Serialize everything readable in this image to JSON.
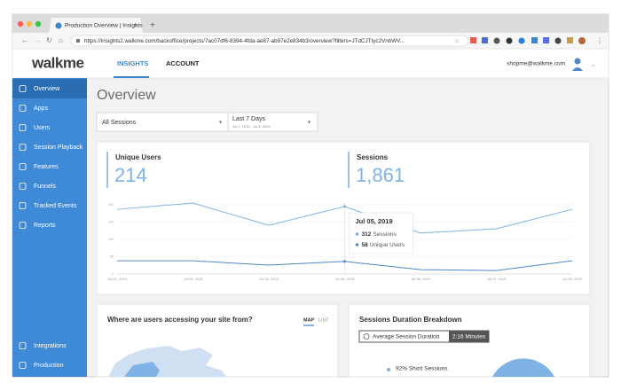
{
  "browser": {
    "tab_title": "Production Overview | Insights",
    "url": "https://insights2.walkme.com/backoffice/projects/7ac07df6-8394-4fda-ae87-ab97e2e834b3/overview?filters=JTdCJTIyc2VnbWV..."
  },
  "header": {
    "logo": "walkme",
    "nav": [
      "INSIGHTS",
      "ACCOUNT"
    ],
    "user": "shopme@walkme.com"
  },
  "sidebar": {
    "items": [
      "Overview",
      "Apps",
      "Users",
      "Session Playback",
      "Features",
      "Funnels",
      "Tracked Events",
      "Reports"
    ],
    "bottom": [
      "Integrations",
      "Production"
    ]
  },
  "page": {
    "title": "Overview",
    "segment": "All Sessions",
    "range": "Last 7 Days",
    "range_dates": "Jul 2, 2019 - Jul 8, 2019"
  },
  "kpis": [
    {
      "label": "Unique Users",
      "value": "214"
    },
    {
      "label": "Sessions",
      "value": "1,861"
    }
  ],
  "chart_data": {
    "type": "line",
    "categories": [
      "Jul 02, 2019",
      "Jul 03, 2019",
      "Jul 04, 2019",
      "Jul 05, 2019",
      "Jul 06, 2019",
      "Jul 07, 2019",
      "Jul 08, 2019"
    ],
    "series": [
      {
        "name": "Sessions",
        "color": "#7fb2e5",
        "values": [
          299,
          328,
          225,
          312,
          189,
          209,
          299
        ]
      },
      {
        "name": "Unique Users",
        "color": "#4d87c7",
        "values": [
          61,
          61,
          41,
          58,
          20,
          16,
          61
        ]
      }
    ],
    "ylim": [
      0,
      330
    ],
    "yticks": [
      0,
      80,
      160,
      240,
      320
    ],
    "grid": true,
    "tooltip_index": 3
  },
  "map_card": {
    "title": "Where are users accessing your site from?",
    "toggles": [
      "MAP",
      "LIST"
    ]
  },
  "duration_card": {
    "title": "Sessions Duration Breakdown",
    "metric": "Average Session Duration",
    "metric_value": "2:16 Minutes",
    "legend": "92% Short Sessions"
  }
}
